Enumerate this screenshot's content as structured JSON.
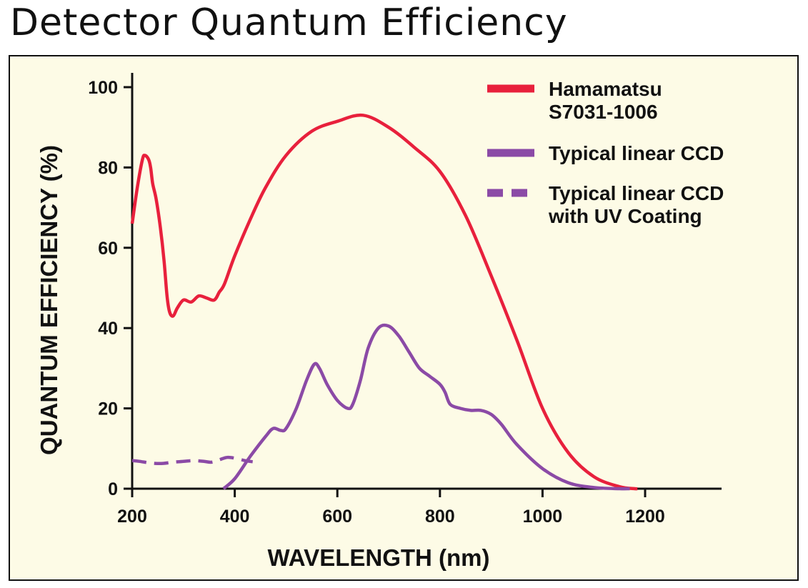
{
  "title": "Detector Quantum Efficiency",
  "chart_data": {
    "type": "line",
    "xlabel": "WAVELENGTH (nm)",
    "ylabel": "QUANTUM EFFICIENCY (%)",
    "xlim": [
      200,
      1330
    ],
    "ylim": [
      0,
      102
    ],
    "xticks": [
      200,
      400,
      600,
      800,
      1000,
      1200
    ],
    "yticks": [
      0,
      20,
      40,
      60,
      80,
      100
    ],
    "grid": false,
    "legend_position": "top-right",
    "colors": {
      "red": "#e8203c",
      "purple": "#8b4aa6"
    },
    "series": [
      {
        "name": "Hamamatsu S7031-1006",
        "legend_lines": [
          "Hamamatsu",
          "S7031-1006"
        ],
        "color": "#e8203c",
        "style": "solid",
        "x": [
          200,
          210,
          220,
          225,
          232,
          236,
          240,
          247,
          255,
          262,
          268,
          273,
          280,
          288,
          300,
          315,
          330,
          345,
          360,
          370,
          380,
          400,
          430,
          460,
          500,
          550,
          600,
          650,
          700,
          750,
          800,
          850,
          900,
          950,
          1000,
          1050,
          1100,
          1150,
          1180,
          1185
        ],
        "y": [
          66,
          75,
          82,
          83,
          82,
          80,
          76,
          72,
          65,
          57,
          48,
          44,
          43,
          45,
          47,
          46.5,
          48,
          47.5,
          47,
          49,
          51,
          58,
          67,
          75,
          83,
          89,
          91.5,
          93,
          90,
          85,
          79,
          68,
          53,
          37,
          20,
          9,
          3,
          0.5,
          0,
          0
        ]
      },
      {
        "name": "Typical linear CCD",
        "legend_lines": [
          "Typical linear CCD"
        ],
        "color": "#8b4aa6",
        "style": "solid",
        "x": [
          378,
          400,
          430,
          460,
          475,
          490,
          500,
          520,
          540,
          555,
          565,
          580,
          600,
          620,
          630,
          645,
          660,
          680,
          700,
          720,
          740,
          760,
          780,
          800,
          810,
          820,
          840,
          860,
          880,
          900,
          920,
          950,
          1000,
          1050,
          1100,
          1150,
          1170
        ],
        "y": [
          0,
          2.5,
          8,
          13,
          15,
          14.5,
          15,
          20,
          27,
          31,
          30,
          26,
          22,
          20,
          21,
          27,
          35,
          40,
          40.5,
          38,
          34,
          30,
          28,
          26,
          24,
          21,
          20,
          19.5,
          19.5,
          18.5,
          16,
          11,
          5,
          1.5,
          0.3,
          0,
          0
        ]
      },
      {
        "name": "Typical linear CCD with UV Coating",
        "legend_lines": [
          "Typical linear CCD",
          "with UV Coating"
        ],
        "color": "#8b4aa6",
        "style": "dashed",
        "x": [
          200,
          215,
          230,
          245,
          260,
          280,
          300,
          320,
          340,
          355,
          370,
          385,
          400,
          420,
          435
        ],
        "y": [
          7,
          6.8,
          6.5,
          6.3,
          6.3,
          6.6,
          6.8,
          7,
          6.8,
          6.6,
          7.2,
          7.8,
          7.6,
          7,
          6.7
        ]
      }
    ]
  }
}
